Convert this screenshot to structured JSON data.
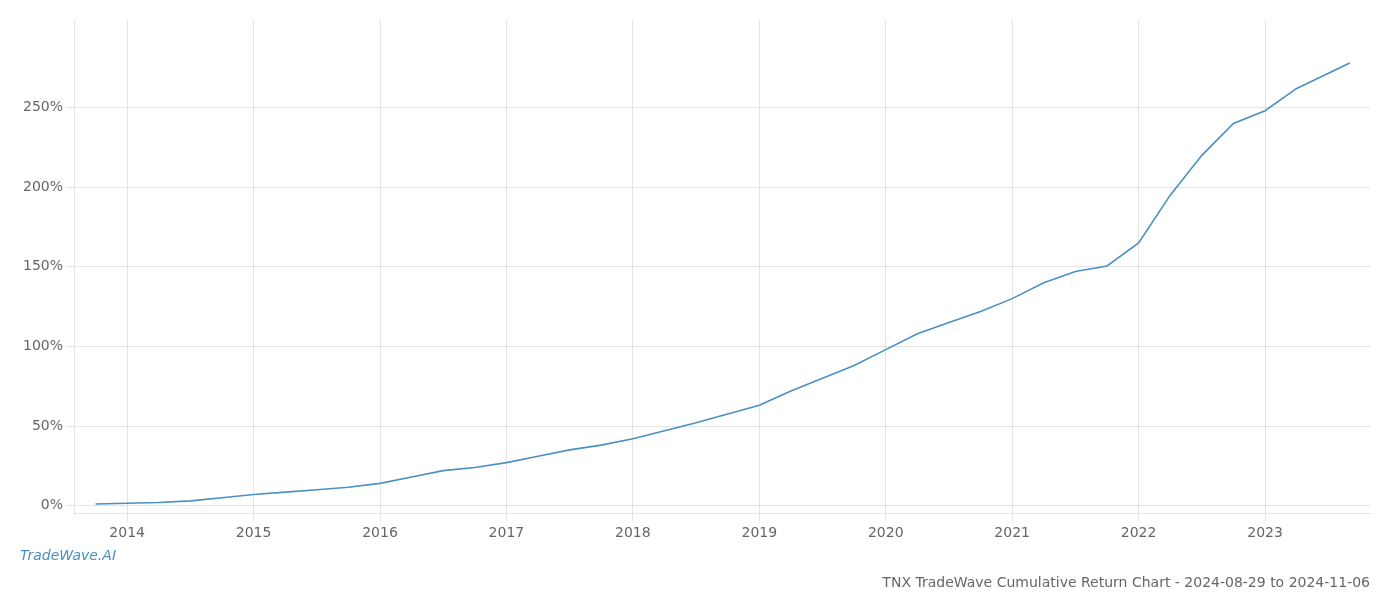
{
  "chart_data": {
    "type": "line",
    "title": "TNX TradeWave Cumulative Return Chart - 2024-08-29 to 2024-11-06",
    "annotations": [
      "TradeWave.AI"
    ],
    "x": [
      2013.75,
      2014.0,
      2014.25,
      2014.5,
      2014.75,
      2015.0,
      2015.25,
      2015.5,
      2015.75,
      2016.0,
      2016.25,
      2016.5,
      2016.75,
      2017.0,
      2017.25,
      2017.5,
      2017.75,
      2018.0,
      2018.25,
      2018.5,
      2018.75,
      2019.0,
      2019.25,
      2019.5,
      2019.75,
      2020.0,
      2020.25,
      2020.5,
      2020.75,
      2021.0,
      2021.25,
      2021.5,
      2021.75,
      2022.0,
      2022.25,
      2022.5,
      2022.75,
      2023.0,
      2023.25,
      2023.67
    ],
    "values": [
      1.0,
      1.5,
      2.0,
      3.0,
      5.0,
      7.0,
      8.5,
      10.0,
      11.5,
      14.0,
      18.0,
      22.0,
      24.0,
      27.0,
      31.0,
      35.0,
      38.0,
      42.0,
      47.0,
      52.0,
      57.5,
      63.0,
      72.0,
      80.0,
      88.0,
      98.0,
      108.0,
      115.0,
      122.0,
      130.0,
      140.0,
      147.0,
      150.5,
      165.0,
      195.0,
      220.0,
      240.0,
      248.0,
      262.0,
      278.0
    ],
    "color": "#4a90c4",
    "xlim": [
      2013.58,
      2023.83
    ],
    "xticks": [
      2014,
      2015,
      2016,
      2017,
      2018,
      2019,
      2020,
      2021,
      2022,
      2023
    ],
    "ylim": [
      -5,
      305
    ],
    "yticks": [
      {
        "value": 0,
        "label": "0%"
      },
      {
        "value": 50,
        "label": "50%"
      },
      {
        "value": 100,
        "label": "100%"
      },
      {
        "value": 150,
        "label": "150%"
      },
      {
        "value": 200,
        "label": "200%"
      },
      {
        "value": 250,
        "label": "250%"
      }
    ],
    "grid": true
  }
}
